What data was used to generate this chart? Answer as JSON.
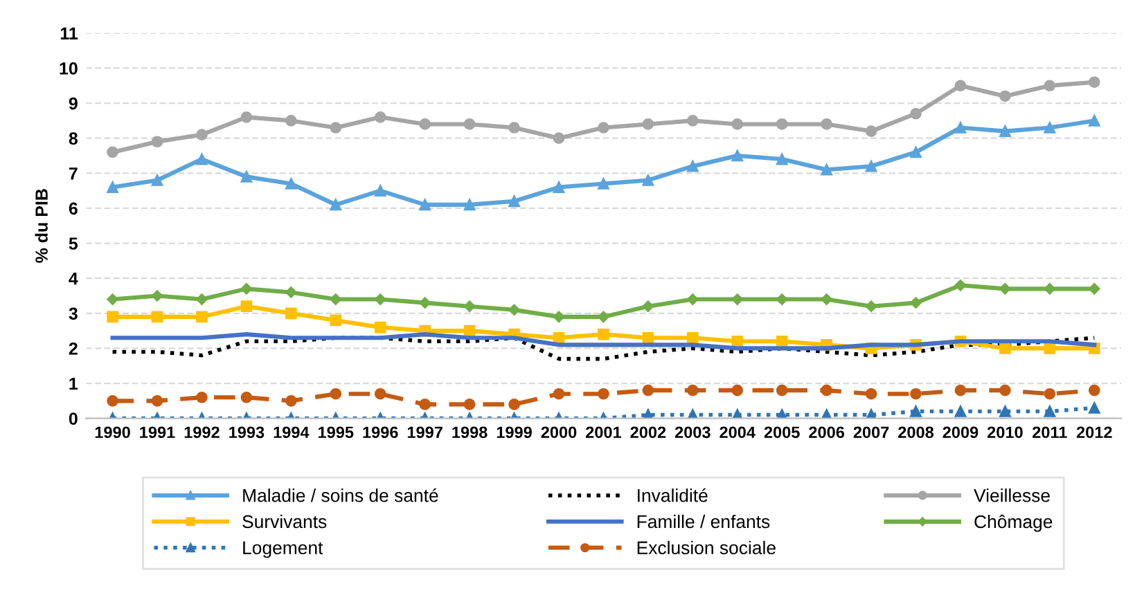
{
  "chart_data": {
    "type": "line",
    "ylabel": "% du PIB",
    "categories": [
      "1990",
      "1991",
      "1992",
      "1993",
      "1994",
      "1995",
      "1996",
      "1997",
      "1998",
      "1999",
      "2000",
      "2001",
      "2002",
      "2003",
      "2004",
      "2005",
      "2006",
      "2007",
      "2008",
      "2009",
      "2010",
      "2011",
      "2012"
    ],
    "ylim": [
      0,
      11
    ],
    "yticks": [
      0,
      1,
      2,
      3,
      4,
      5,
      6,
      7,
      8,
      9,
      10,
      11
    ],
    "grid": "y",
    "legend": "bottom",
    "series": [
      {
        "name": "Maladie / soins de santé",
        "color": "#5ba3dc",
        "marker": "triangle",
        "line_style": "solid",
        "values": [
          6.6,
          6.8,
          7.4,
          6.9,
          6.7,
          6.1,
          6.5,
          6.1,
          6.1,
          6.2,
          6.6,
          6.7,
          6.8,
          7.2,
          7.5,
          7.4,
          7.1,
          7.2,
          7.6,
          8.3,
          8.2,
          8.3,
          8.5
        ]
      },
      {
        "name": "Invalidité",
        "color": "#000000",
        "marker": "none",
        "line_style": "dotted",
        "values": [
          1.9,
          1.9,
          1.8,
          2.2,
          2.2,
          2.3,
          2.3,
          2.2,
          2.2,
          2.3,
          1.7,
          1.7,
          1.9,
          2.0,
          1.9,
          2.0,
          1.9,
          1.8,
          1.9,
          2.1,
          2.1,
          2.2,
          2.3
        ]
      },
      {
        "name": "Vieillesse",
        "color": "#a5a5a5",
        "marker": "circle",
        "line_style": "solid",
        "values": [
          7.6,
          7.9,
          8.1,
          8.6,
          8.5,
          8.3,
          8.6,
          8.4,
          8.4,
          8.3,
          8.0,
          8.3,
          8.4,
          8.5,
          8.4,
          8.4,
          8.4,
          8.2,
          8.7,
          9.5,
          9.2,
          9.5,
          9.6
        ]
      },
      {
        "name": "Survivants",
        "color": "#ffc000",
        "marker": "square",
        "line_style": "solid",
        "values": [
          2.9,
          2.9,
          2.9,
          3.2,
          3.0,
          2.8,
          2.6,
          2.5,
          2.5,
          2.4,
          2.3,
          2.4,
          2.3,
          2.3,
          2.2,
          2.2,
          2.1,
          2.0,
          2.1,
          2.2,
          2.0,
          2.0,
          2.0
        ]
      },
      {
        "name": "Famille / enfants",
        "color": "#4472c4",
        "marker": "none",
        "line_style": "solid",
        "values": [
          2.3,
          2.3,
          2.3,
          2.4,
          2.3,
          2.3,
          2.3,
          2.4,
          2.3,
          2.3,
          2.1,
          2.1,
          2.1,
          2.1,
          2.0,
          2.0,
          2.0,
          2.1,
          2.1,
          2.2,
          2.2,
          2.2,
          2.1
        ]
      },
      {
        "name": "Chômage",
        "color": "#70ad47",
        "marker": "diamond",
        "line_style": "solid",
        "values": [
          3.4,
          3.5,
          3.4,
          3.7,
          3.6,
          3.4,
          3.4,
          3.3,
          3.2,
          3.1,
          2.9,
          2.9,
          3.2,
          3.4,
          3.4,
          3.4,
          3.4,
          3.2,
          3.3,
          3.8,
          3.7,
          3.7,
          3.7
        ]
      },
      {
        "name": "Logement",
        "color": "#2e75b6",
        "marker": "triangle",
        "line_style": "dotted",
        "values": [
          0,
          0,
          0,
          0,
          0,
          0,
          0,
          0,
          0,
          0,
          0,
          0,
          0.1,
          0.1,
          0.1,
          0.1,
          0.1,
          0.1,
          0.2,
          0.2,
          0.2,
          0.2,
          0.3
        ]
      },
      {
        "name": "Exclusion sociale",
        "color": "#c55a11",
        "marker": "circle",
        "line_style": "dashed",
        "values": [
          0.5,
          0.5,
          0.6,
          0.6,
          0.5,
          0.7,
          0.7,
          0.4,
          0.4,
          0.4,
          0.7,
          0.7,
          0.8,
          0.8,
          0.8,
          0.8,
          0.8,
          0.7,
          0.7,
          0.8,
          0.8,
          0.7,
          0.8
        ]
      }
    ]
  }
}
